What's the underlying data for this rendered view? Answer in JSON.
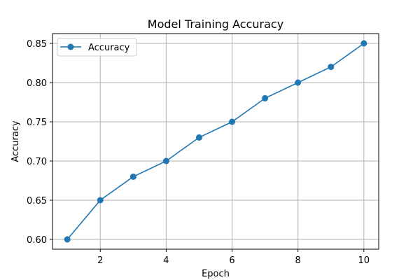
{
  "chart_data": {
    "type": "line",
    "title": "Model Training Accuracy",
    "xlabel": "Epoch",
    "ylabel": "Accuracy",
    "x": [
      1,
      2,
      3,
      4,
      5,
      6,
      7,
      8,
      9,
      10
    ],
    "series": [
      {
        "name": "Accuracy",
        "values": [
          0.6,
          0.65,
          0.68,
          0.7,
          0.73,
          0.75,
          0.78,
          0.8,
          0.82,
          0.85
        ],
        "color": "#1f77b4",
        "marker": "circle"
      }
    ],
    "xlim": [
      0.55,
      10.45
    ],
    "ylim": [
      0.5875,
      0.8625
    ],
    "xticks": [
      2,
      4,
      6,
      8,
      10
    ],
    "xtick_labels": [
      "2",
      "4",
      "6",
      "8",
      "10"
    ],
    "yticks": [
      0.6,
      0.65,
      0.7,
      0.75,
      0.8,
      0.85
    ],
    "ytick_labels": [
      "0.60",
      "0.65",
      "0.70",
      "0.75",
      "0.80",
      "0.85"
    ],
    "grid": true,
    "legend_position": "upper-left"
  }
}
